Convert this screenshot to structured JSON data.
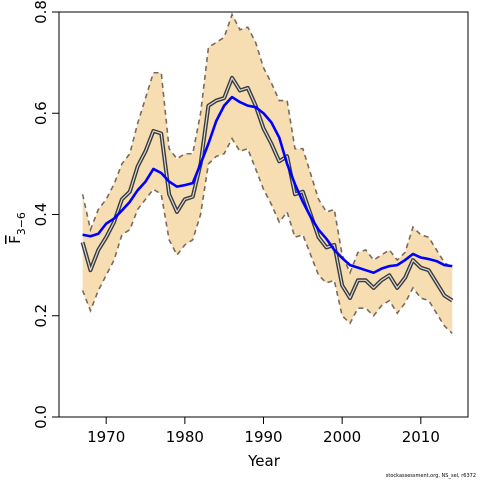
{
  "chart_data": {
    "type": "line",
    "xlabel": "Year",
    "ylabel": "F",
    "ylabel_subscript": "3−6",
    "xlim": [
      1964,
      2016
    ],
    "ylim": [
      0.0,
      0.8
    ],
    "x_ticks": [
      1970,
      1980,
      1990,
      2000,
      2010
    ],
    "y_ticks": [
      0.0,
      0.2,
      0.4,
      0.6,
      0.8
    ],
    "y_tick_labels": [
      "0.0",
      "0.2",
      "0.4",
      "0.6",
      "0.8"
    ],
    "grid": false,
    "credit": "stockassessment.org, NS_sel, r6372",
    "colors": {
      "band_fill": "#f7deb2",
      "band_edge": "#7a6a5c",
      "estimate": "#3b3b3b",
      "trend": "#0000ff"
    },
    "x": [
      1967,
      1968,
      1969,
      1970,
      1971,
      1972,
      1973,
      1974,
      1975,
      1976,
      1977,
      1978,
      1979,
      1980,
      1981,
      1982,
      1983,
      1984,
      1985,
      1986,
      1987,
      1988,
      1989,
      1990,
      1991,
      1992,
      1993,
      1994,
      1995,
      1996,
      1997,
      1998,
      1999,
      2000,
      2001,
      2002,
      2003,
      2004,
      2005,
      2006,
      2007,
      2008,
      2009,
      2010,
      2011,
      2012,
      2013,
      2014
    ],
    "series": [
      {
        "role": "estimate",
        "values": [
          0.345,
          0.29,
          0.33,
          0.355,
          0.385,
          0.43,
          0.445,
          0.495,
          0.525,
          0.565,
          0.56,
          0.44,
          0.405,
          0.43,
          0.435,
          0.5,
          0.615,
          0.625,
          0.63,
          0.67,
          0.645,
          0.65,
          0.615,
          0.57,
          0.54,
          0.505,
          0.515,
          0.44,
          0.445,
          0.4,
          0.355,
          0.335,
          0.34,
          0.26,
          0.235,
          0.27,
          0.27,
          0.255,
          0.27,
          0.28,
          0.255,
          0.275,
          0.31,
          0.295,
          0.29,
          0.265,
          0.24,
          0.23
        ]
      },
      {
        "role": "upper",
        "values": [
          0.44,
          0.37,
          0.41,
          0.43,
          0.46,
          0.5,
          0.52,
          0.58,
          0.63,
          0.68,
          0.68,
          0.53,
          0.51,
          0.52,
          0.52,
          0.6,
          0.73,
          0.74,
          0.75,
          0.795,
          0.765,
          0.77,
          0.74,
          0.69,
          0.66,
          0.625,
          0.625,
          0.53,
          0.53,
          0.48,
          0.43,
          0.405,
          0.41,
          0.32,
          0.285,
          0.325,
          0.33,
          0.31,
          0.32,
          0.33,
          0.31,
          0.325,
          0.375,
          0.36,
          0.355,
          0.33,
          0.305,
          0.295
        ]
      },
      {
        "role": "lower",
        "values": [
          0.25,
          0.21,
          0.25,
          0.28,
          0.31,
          0.36,
          0.37,
          0.41,
          0.43,
          0.45,
          0.44,
          0.35,
          0.32,
          0.34,
          0.35,
          0.4,
          0.5,
          0.515,
          0.52,
          0.55,
          0.525,
          0.53,
          0.49,
          0.45,
          0.42,
          0.385,
          0.405,
          0.355,
          0.36,
          0.32,
          0.28,
          0.265,
          0.27,
          0.2,
          0.185,
          0.215,
          0.215,
          0.2,
          0.22,
          0.23,
          0.205,
          0.225,
          0.255,
          0.235,
          0.23,
          0.205,
          0.18,
          0.165
        ]
      },
      {
        "role": "trend",
        "values": [
          0.36,
          0.357,
          0.362,
          0.382,
          0.392,
          0.408,
          0.425,
          0.448,
          0.465,
          0.49,
          0.482,
          0.465,
          0.455,
          0.458,
          0.462,
          0.5,
          0.54,
          0.585,
          0.615,
          0.632,
          0.622,
          0.615,
          0.612,
          0.6,
          0.582,
          0.552,
          0.5,
          0.46,
          0.425,
          0.395,
          0.37,
          0.352,
          0.33,
          0.314,
          0.3,
          0.295,
          0.29,
          0.285,
          0.293,
          0.298,
          0.3,
          0.31,
          0.322,
          0.315,
          0.312,
          0.308,
          0.3,
          0.298
        ]
      }
    ]
  }
}
